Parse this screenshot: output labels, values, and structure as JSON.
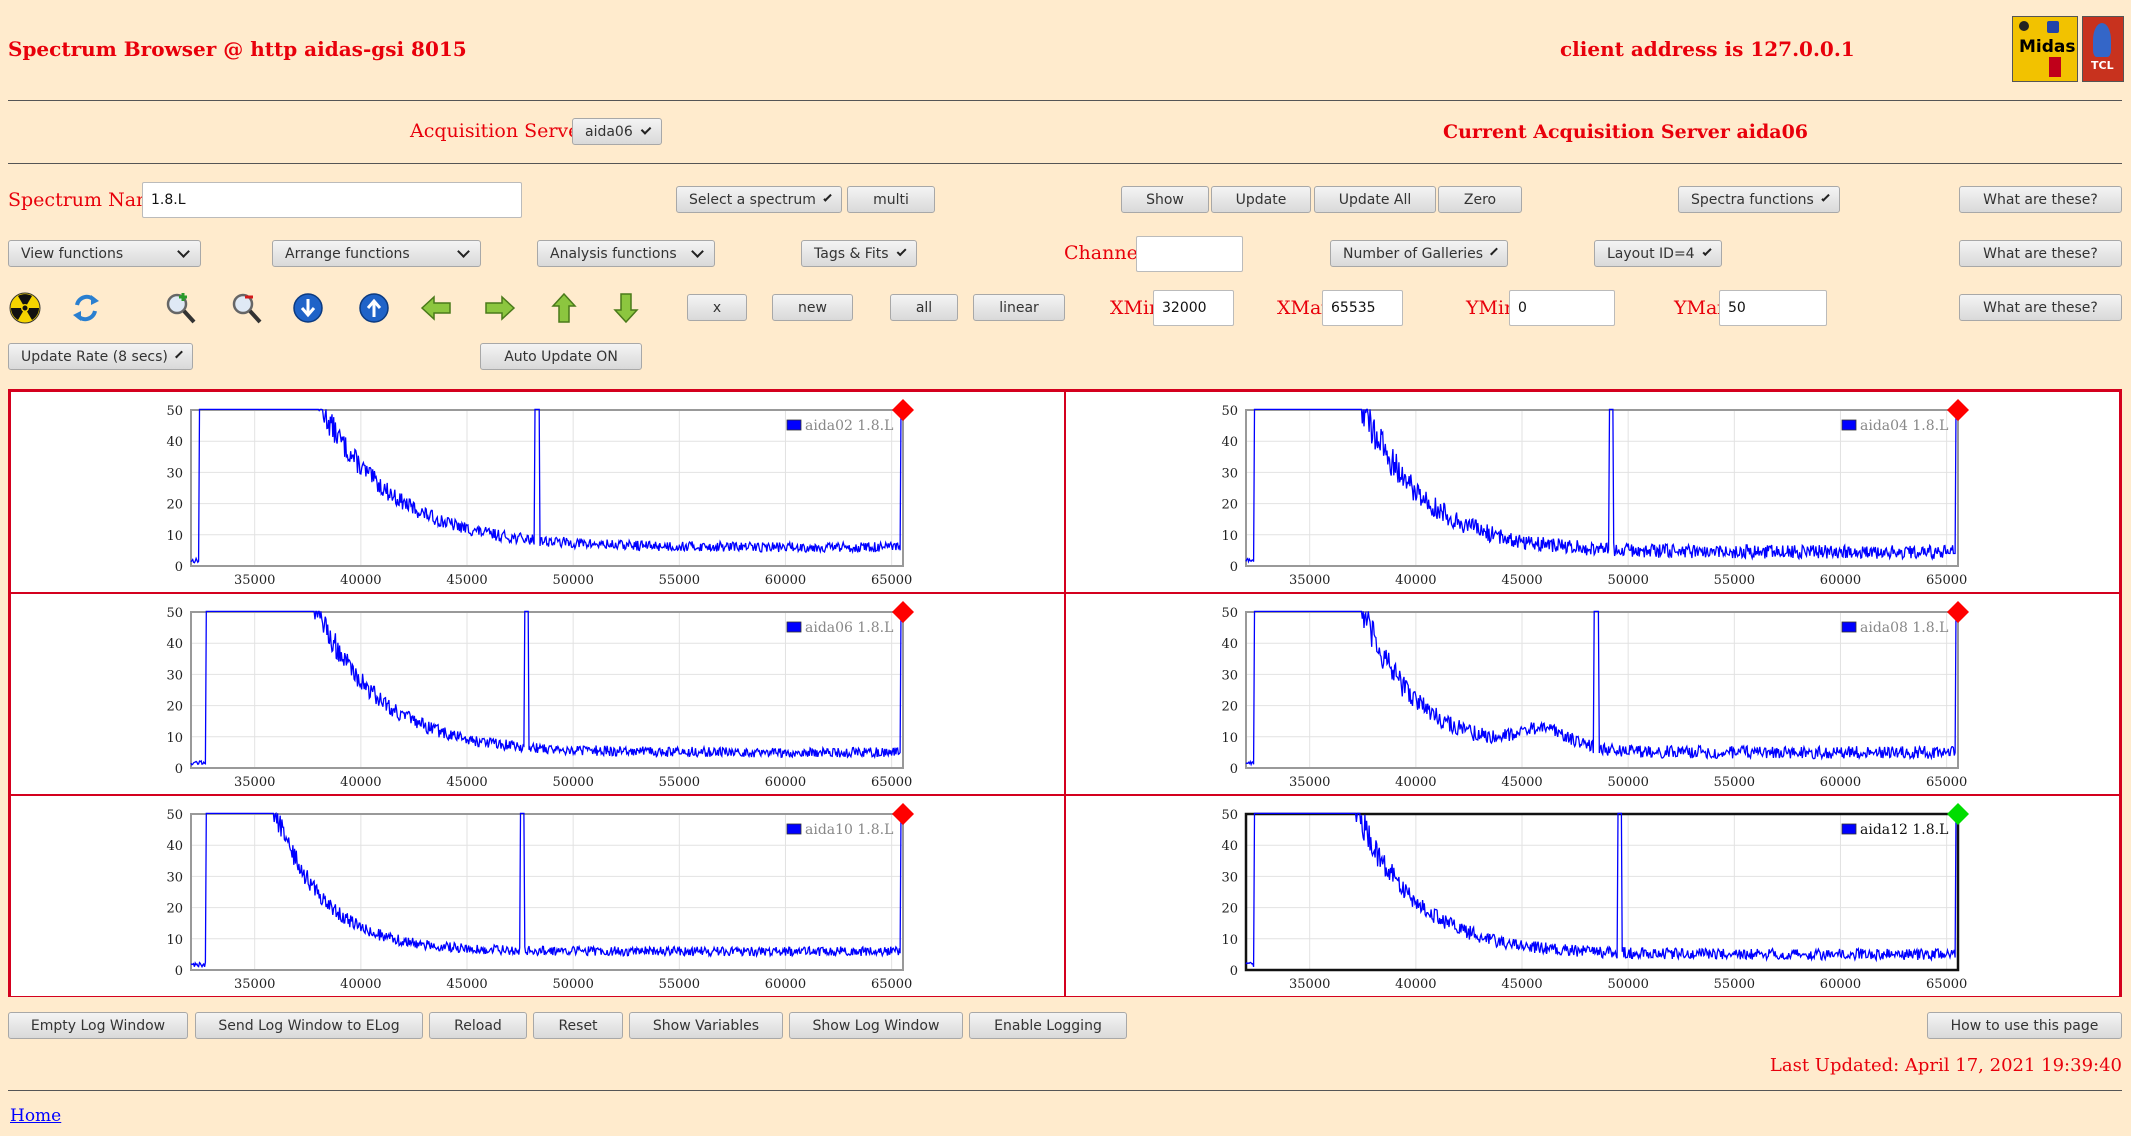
{
  "header": {
    "title": "Spectrum Browser @ http aidas-gsi 8015",
    "client_address": "client address is 127.0.0.1",
    "logo1_text": "Midas",
    "logo2_text": "TCL"
  },
  "acquisition": {
    "label": "Acquisition Servers",
    "server_select": "aida06",
    "current": "Current Acquisition Server aida06"
  },
  "row1": {
    "spectrum_name_label": "Spectrum Name:",
    "spectrum_name_value": "1.8.L",
    "select_spectrum": "Select a spectrum",
    "multi": "multi",
    "show": "Show",
    "update": "Update",
    "update_all": "Update All",
    "zero": "Zero",
    "spectra_functions": "Spectra functions",
    "what": "What are these?"
  },
  "row2": {
    "view_functions": "View functions",
    "arrange_functions": "Arrange functions",
    "analysis_functions": "Analysis functions",
    "tags_fits": "Tags & Fits",
    "channel_label": "Channel:",
    "channel_value": "",
    "galleries": "Number of Galleries",
    "layout": "Layout ID=4",
    "what": "What are these?"
  },
  "row3": {
    "x": "x",
    "new": "new",
    "all": "all",
    "linear": "linear",
    "xmin_label": "XMin",
    "xmin_value": "32000",
    "xmax_label": "XMax",
    "xmax_value": "65535",
    "ymin_label": "YMin",
    "ymin_value": "0",
    "ymax_label": "YMax",
    "ymax_value": "50",
    "what": "What are these?",
    "icons": [
      "radiation-icon",
      "refresh-icon",
      "zoom-in-icon",
      "zoom-out-icon",
      "scroll-down-icon",
      "scroll-up-icon",
      "arrow-left-icon",
      "arrow-right-icon",
      "arrow-up-icon",
      "arrow-down-icon"
    ]
  },
  "row4": {
    "update_rate": "Update Rate (8 secs)",
    "auto_update": "Auto Update ON"
  },
  "charts_common": {
    "xlim": [
      32000,
      65535
    ],
    "ylim": [
      0,
      50
    ],
    "x_ticks": [
      "35000",
      "40000",
      "45000",
      "50000",
      "55000",
      "60000",
      "65000"
    ],
    "y_ticks": [
      "0",
      "10",
      "20",
      "30",
      "40",
      "50"
    ],
    "series_color": "#0000ff"
  },
  "chart_data": [
    {
      "type": "line",
      "legend": "aida02 1.8.L",
      "status_color": "#ff0000",
      "xlim": [
        32000,
        65535
      ],
      "ylim": [
        0,
        50
      ],
      "params": {
        "onset": 32400,
        "decay_start": 37900,
        "tail": 6,
        "amp": 48,
        "tau": 3400,
        "peak_x": 48300,
        "noise": 1.6,
        "hump": 0
      }
    },
    {
      "type": "line",
      "legend": "aida04 1.8.L",
      "status_color": "#ff0000",
      "xlim": [
        32000,
        65535
      ],
      "ylim": [
        0,
        50
      ],
      "params": {
        "onset": 32400,
        "decay_start": 37400,
        "tail": 4.5,
        "amp": 48,
        "tau": 2900,
        "peak_x": 49200,
        "noise": 2.2,
        "hump": 0
      }
    },
    {
      "type": "line",
      "legend": "aida06 1.8.L",
      "status_color": "#ff0000",
      "xlim": [
        32000,
        65535
      ],
      "ylim": [
        0,
        50
      ],
      "params": {
        "onset": 32700,
        "decay_start": 37800,
        "tail": 5,
        "amp": 48,
        "tau": 3000,
        "peak_x": 47800,
        "noise": 1.6,
        "hump": 0
      }
    },
    {
      "type": "line",
      "legend": "aida08 1.8.L",
      "status_color": "#ff0000",
      "xlim": [
        32000,
        65535
      ],
      "ylim": [
        0,
        50
      ],
      "params": {
        "onset": 32400,
        "decay_start": 37300,
        "tail": 5,
        "amp": 48,
        "tau": 2600,
        "peak_x": 48500,
        "noise": 2.0,
        "hump": 1
      }
    },
    {
      "type": "line",
      "legend": "aida10 1.8.L",
      "status_color": "#ff0000",
      "xlim": [
        32000,
        65535
      ],
      "ylim": [
        0,
        50
      ],
      "params": {
        "onset": 32700,
        "decay_start": 35800,
        "tail": 6,
        "amp": 48,
        "tau": 2300,
        "peak_x": 47600,
        "noise": 1.5,
        "hump": 0
      }
    },
    {
      "type": "line",
      "legend": "aida12 1.8.L",
      "status_color": "#00dd00",
      "xlim": [
        32000,
        65535
      ],
      "ylim": [
        0,
        50
      ],
      "params": {
        "onset": 32400,
        "decay_start": 37100,
        "tail": 5,
        "amp": 48,
        "tau": 2800,
        "peak_x": 49600,
        "noise": 1.8,
        "hump": 0
      }
    }
  ],
  "footer": {
    "empty_log": "Empty Log Window",
    "send_log": "Send Log Window to ELog",
    "reload": "Reload",
    "reset": "Reset",
    "show_vars": "Show Variables",
    "show_log": "Show Log Window",
    "enable_logging": "Enable Logging",
    "how_to": "How to use this page",
    "last_updated": "Last Updated: April 17, 2021 19:39:40",
    "home": "Home"
  }
}
